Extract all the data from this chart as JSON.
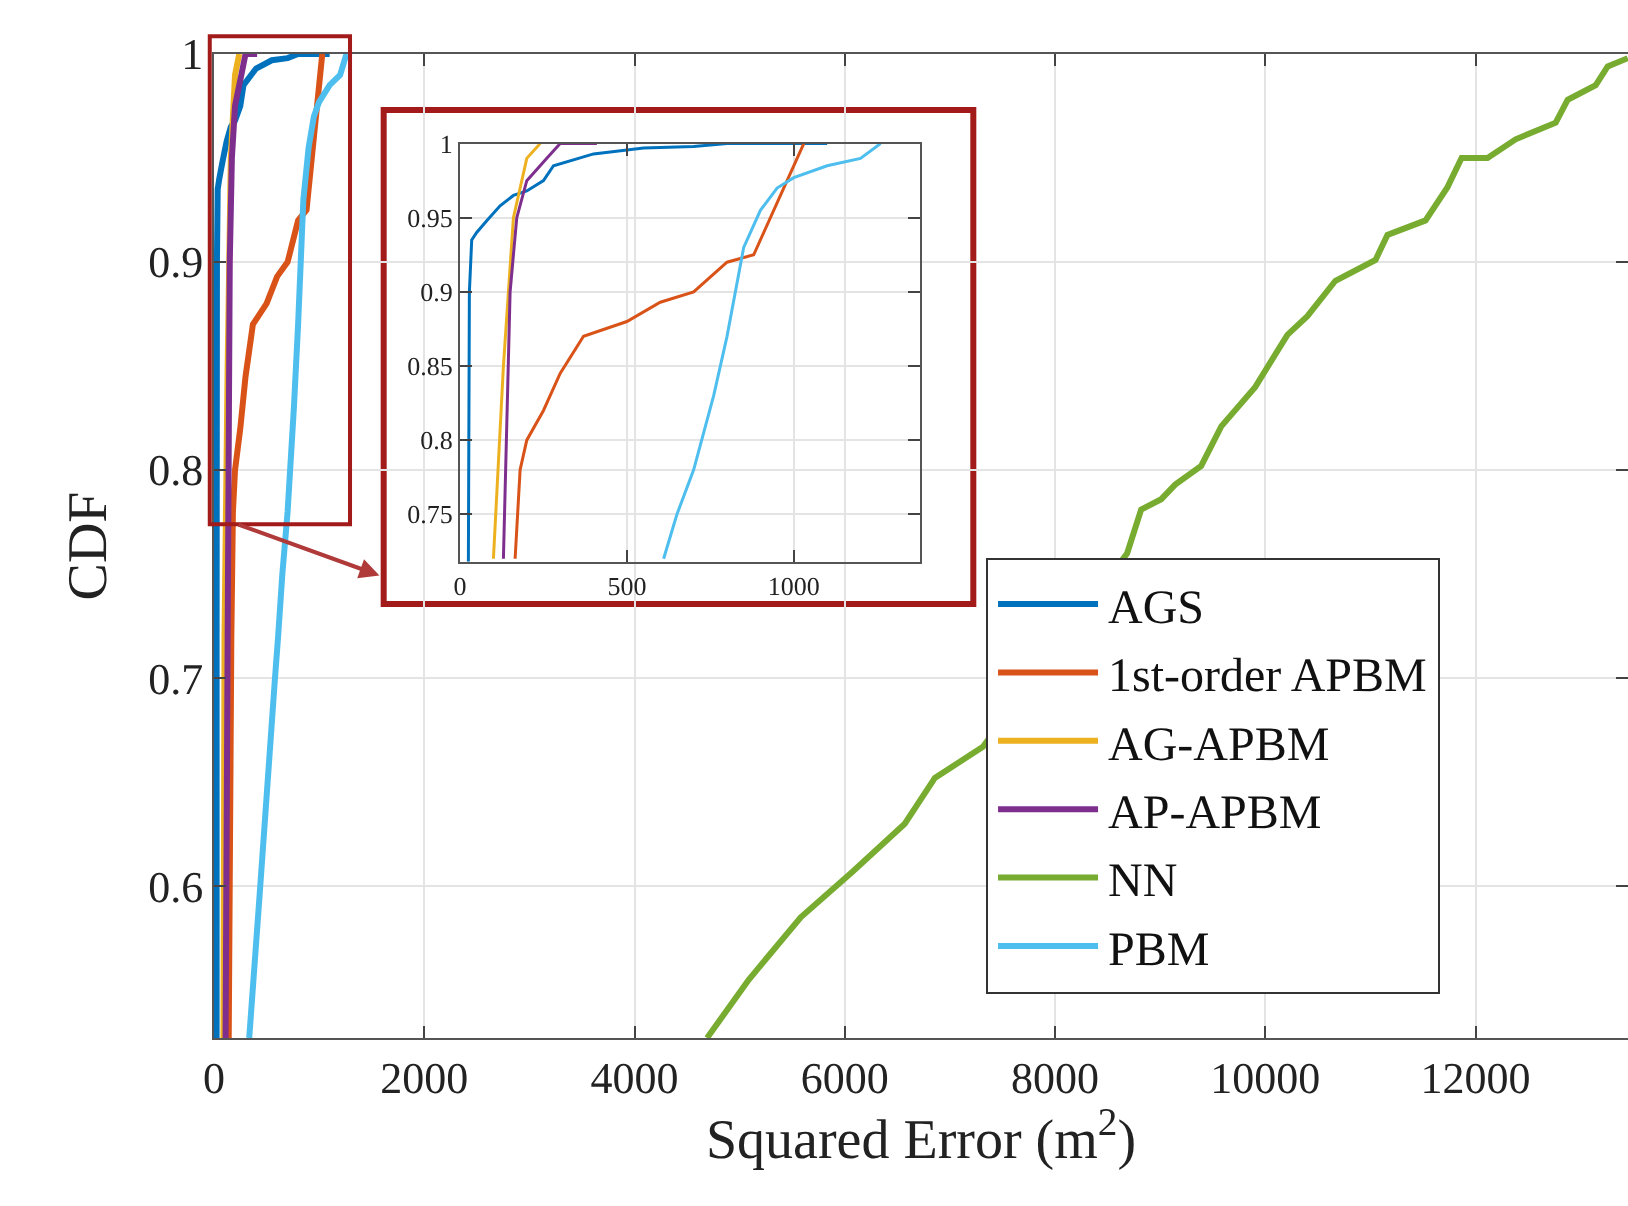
{
  "chart_data": [
    {
      "type": "line",
      "xlabel": "Squared Error (m$^{2}$)",
      "ylabel": "CDF",
      "xlim": [
        0,
        13450
      ],
      "ylim": [
        0.527,
        1
      ],
      "xticks": [
        0,
        2000,
        4000,
        6000,
        8000,
        10000,
        12000
      ],
      "yticks": [
        0.6,
        0.7,
        0.8,
        0.9,
        1
      ],
      "grid": true,
      "legend": "bottom right",
      "series": [
        {
          "name": "AGS",
          "color": "#0072bd",
          "x": [
            25,
            25,
            28,
            35,
            50,
            80,
            120,
            160,
            200,
            250,
            280,
            400,
            550,
            700,
            800,
            1100
          ],
          "values": [
            0.527,
            0.718,
            0.9,
            0.935,
            0.94,
            0.948,
            0.958,
            0.965,
            0.968,
            0.975,
            0.985,
            0.993,
            0.997,
            0.998,
            1.0,
            1.0
          ]
        },
        {
          "name": "1st-order APBM",
          "color": "#d95319",
          "x": [
            140,
            165,
            180,
            200,
            250,
            300,
            370,
            500,
            600,
            700,
            800,
            880,
            950,
            1030
          ],
          "values": [
            0.527,
            0.72,
            0.78,
            0.8,
            0.82,
            0.845,
            0.87,
            0.88,
            0.893,
            0.9,
            0.92,
            0.925,
            0.96,
            1.0
          ]
        },
        {
          "name": "AG-APBM",
          "color": "#edb120",
          "x": [
            90,
            100,
            130,
            160,
            200,
            240
          ],
          "values": [
            0.527,
            0.72,
            0.85,
            0.95,
            0.99,
            1.0
          ]
        },
        {
          "name": "AP-APBM",
          "color": "#7e2f8e",
          "x": [
            110,
            130,
            150,
            170,
            200,
            260,
            300,
            410
          ],
          "values": [
            0.527,
            0.72,
            0.9,
            0.95,
            0.975,
            0.99,
            1.0,
            1.0
          ]
        },
        {
          "name": "NN",
          "color": "#77ac30",
          "x": [
            4690,
            5086,
            5581,
            6076,
            6571,
            6857,
            7314,
            8686,
            8819,
            9010,
            9143,
            9390,
            9581,
            9905,
            10210,
            10400,
            10667,
            11048,
            11162,
            11524,
            11733,
            11867,
            12114,
            12381,
            12762,
            12876,
            13143,
            13257,
            13448
          ],
          "values": [
            0.527,
            0.555,
            0.585,
            0.607,
            0.63,
            0.652,
            0.667,
            0.76,
            0.781,
            0.786,
            0.793,
            0.802,
            0.821,
            0.84,
            0.865,
            0.874,
            0.891,
            0.901,
            0.913,
            0.92,
            0.936,
            0.95,
            0.95,
            0.959,
            0.967,
            0.978,
            0.985,
            0.994,
            0.998
          ]
        },
        {
          "name": "PBM",
          "color": "#4dbeee",
          "x": [
            335,
            440,
            580,
            610,
            650,
            700,
            760,
            800,
            850,
            900,
            950,
            1000,
            1100,
            1200,
            1260
          ],
          "values": [
            0.527,
            0.6,
            0.7,
            0.72,
            0.75,
            0.78,
            0.83,
            0.87,
            0.93,
            0.955,
            0.97,
            0.977,
            0.985,
            0.99,
            1.0
          ]
        }
      ]
    },
    {
      "type": "line",
      "xlim": [
        0,
        1377
      ],
      "ylim": [
        0.718,
        1
      ],
      "xticks": [
        0,
        500,
        1000
      ],
      "yticks": [
        0.75,
        0.8,
        0.85,
        0.9,
        0.95,
        1
      ],
      "grid": true,
      "series": [
        {
          "color": "#0072bd",
          "x": [
            25,
            28,
            35,
            50,
            80,
            120,
            160,
            200,
            250,
            280,
            400,
            550,
            700,
            800,
            1100
          ],
          "values": [
            0.718,
            0.9,
            0.935,
            0.94,
            0.948,
            0.958,
            0.965,
            0.968,
            0.975,
            0.985,
            0.993,
            0.997,
            0.998,
            1.0,
            1.0
          ]
        },
        {
          "color": "#d95319",
          "x": [
            165,
            180,
            200,
            250,
            300,
            370,
            500,
            600,
            700,
            800,
            880,
            950,
            1030
          ],
          "values": [
            0.72,
            0.78,
            0.8,
            0.82,
            0.845,
            0.87,
            0.88,
            0.893,
            0.9,
            0.92,
            0.925,
            0.96,
            1.0
          ]
        },
        {
          "color": "#edb120",
          "x": [
            100,
            130,
            160,
            200,
            240
          ],
          "values": [
            0.72,
            0.85,
            0.95,
            0.99,
            1.0
          ]
        },
        {
          "color": "#7e2f8e",
          "x": [
            130,
            150,
            170,
            200,
            260,
            300,
            410
          ],
          "values": [
            0.72,
            0.9,
            0.95,
            0.975,
            0.99,
            1.0,
            1.0
          ]
        },
        {
          "color": "#4dbeee",
          "x": [
            610,
            650,
            700,
            760,
            800,
            850,
            900,
            950,
            1000,
            1100,
            1200,
            1260
          ],
          "values": [
            0.72,
            0.75,
            0.78,
            0.83,
            0.87,
            0.93,
            0.955,
            0.97,
            0.977,
            0.985,
            0.99,
            1.0
          ]
        }
      ]
    }
  ]
}
